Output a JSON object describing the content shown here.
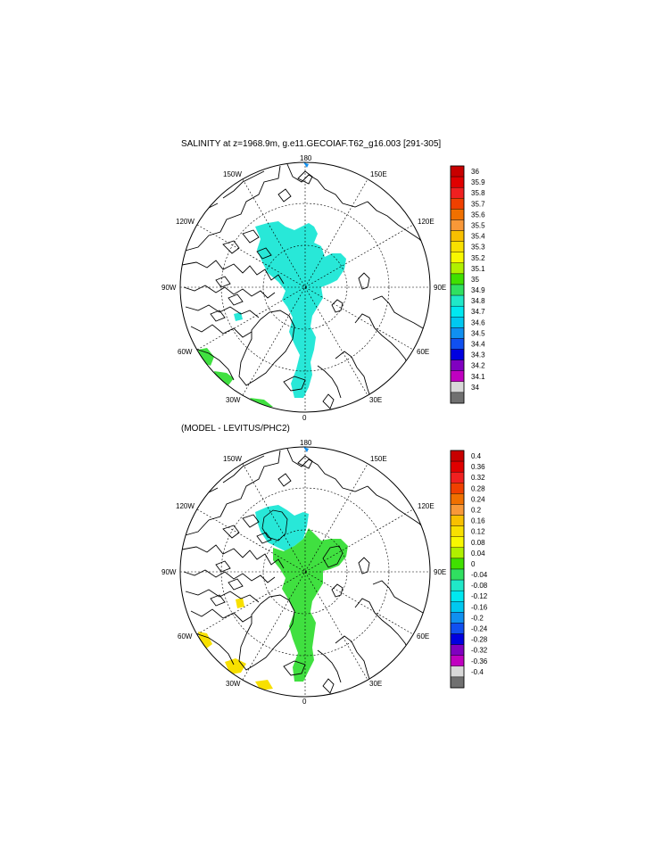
{
  "panels": [
    {
      "id": "salinity",
      "title": "SALINITY at z=1968.9m, g.e11.GECOIAF.T62_g16.003 [291-305]",
      "lon_labels": {
        "top": "180",
        "bottom": "0",
        "left": "90W",
        "right": "90E",
        "ul": "150W",
        "ur": "150E",
        "ml": "120W",
        "mr": "120E",
        "ll": "60W",
        "lr": "60E",
        "bl": "30W",
        "br": "30E"
      },
      "colorbar": {
        "labels": [
          "36",
          "35.9",
          "35.8",
          "35.7",
          "35.6",
          "35.5",
          "35.4",
          "35.3",
          "35.2",
          "35.1",
          "35",
          "34.9",
          "34.8",
          "34.7",
          "34.6",
          "34.5",
          "34.4",
          "34.3",
          "34.2",
          "34.1",
          "34"
        ],
        "colors": [
          "#c80000",
          "#e00000",
          "#f02020",
          "#f04000",
          "#f07000",
          "#f89838",
          "#f8c000",
          "#f8e000",
          "#f8f800",
          "#b0f000",
          "#40e000",
          "#30e060",
          "#20e8c8",
          "#00e8f0",
          "#00c8f0",
          "#1090f0",
          "#1050f0",
          "#0000e0",
          "#8000c0",
          "#c000c0",
          "#d8d8d8",
          "#707070"
        ]
      },
      "field_color": "#28e8d8"
    },
    {
      "id": "difference",
      "title": "(MODEL - LEVITUS/PHC2)",
      "lon_labels": {
        "top": "180",
        "bottom": "0",
        "left": "90W",
        "right": "90E",
        "ul": "150W",
        "ur": "150E",
        "ml": "120W",
        "mr": "120E",
        "ll": "60W",
        "lr": "60E",
        "bl": "30W",
        "br": "30E"
      },
      "colorbar": {
        "labels": [
          "0.4",
          "0.36",
          "0.32",
          "0.28",
          "0.24",
          "0.2",
          "0.16",
          "0.12",
          "0.08",
          "0.04",
          "0",
          "-0.04",
          "-0.08",
          "-0.12",
          "-0.16",
          "-0.2",
          "-0.24",
          "-0.28",
          "-0.32",
          "-0.36",
          "-0.4"
        ],
        "colors": [
          "#c80000",
          "#e00000",
          "#f02020",
          "#f04000",
          "#f07000",
          "#f89838",
          "#f8c000",
          "#f8e000",
          "#f8f800",
          "#b0f000",
          "#40e000",
          "#30e060",
          "#20e8c8",
          "#00e8f0",
          "#00c8f0",
          "#1090f0",
          "#1050f0",
          "#0000e0",
          "#8000c0",
          "#c000c0",
          "#d8d8d8",
          "#707070"
        ]
      },
      "field_colors": {
        "positive": "#40e040",
        "negative": "#28e8d8",
        "warm": "#f8e000"
      }
    }
  ]
}
